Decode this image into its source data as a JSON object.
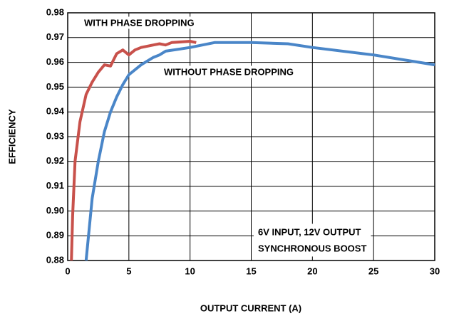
{
  "chart_data": {
    "type": "line",
    "xlabel": "OUTPUT CURRENT (A)",
    "ylabel": "EFFICIENCY",
    "xlim": [
      0,
      30
    ],
    "xticks": [
      0,
      5,
      10,
      15,
      20,
      25,
      30
    ],
    "ylim": [
      0.88,
      0.98
    ],
    "yticks": [
      0.88,
      0.89,
      {
        "value": 0.9,
        "label": "0.90"
      },
      0.91,
      0.92,
      0.93,
      0.94,
      0.95,
      0.96,
      0.97,
      0.98
    ],
    "grid": true,
    "series": [
      {
        "name": "WITH PHASE DROPPING",
        "color": "#c8514b",
        "x": [
          0.3,
          0.4,
          0.6,
          1.0,
          1.5,
          2.0,
          2.5,
          3.0,
          3.5,
          4.0,
          4.5,
          5.0,
          5.5,
          6.0,
          7.0,
          7.5,
          8.0,
          8.5,
          10.0,
          10.5
        ],
        "values": [
          0.88,
          0.898,
          0.92,
          0.936,
          0.947,
          0.952,
          0.956,
          0.959,
          0.9585,
          0.9635,
          0.965,
          0.963,
          0.965,
          0.966,
          0.967,
          0.9675,
          0.967,
          0.968,
          0.9685,
          0.968
        ]
      },
      {
        "name": "WITHOUT PHASE DROPPING",
        "color": "#4a86c8",
        "x": [
          1.5,
          1.8,
          2.0,
          2.5,
          3.0,
          3.5,
          4.0,
          4.5,
          5.0,
          6.0,
          7.0,
          7.5,
          8.0,
          10.0,
          12.0,
          15.0,
          18.0,
          20.0,
          25.0,
          30.0
        ],
        "values": [
          0.88,
          0.895,
          0.905,
          0.92,
          0.932,
          0.94,
          0.946,
          0.951,
          0.955,
          0.959,
          0.962,
          0.963,
          0.9645,
          0.966,
          0.968,
          0.968,
          0.9675,
          0.966,
          0.963,
          0.959
        ]
      }
    ],
    "annotations": [
      "6V INPUT, 12V OUTPUT",
      "SYNCHRONOUS BOOST"
    ]
  }
}
